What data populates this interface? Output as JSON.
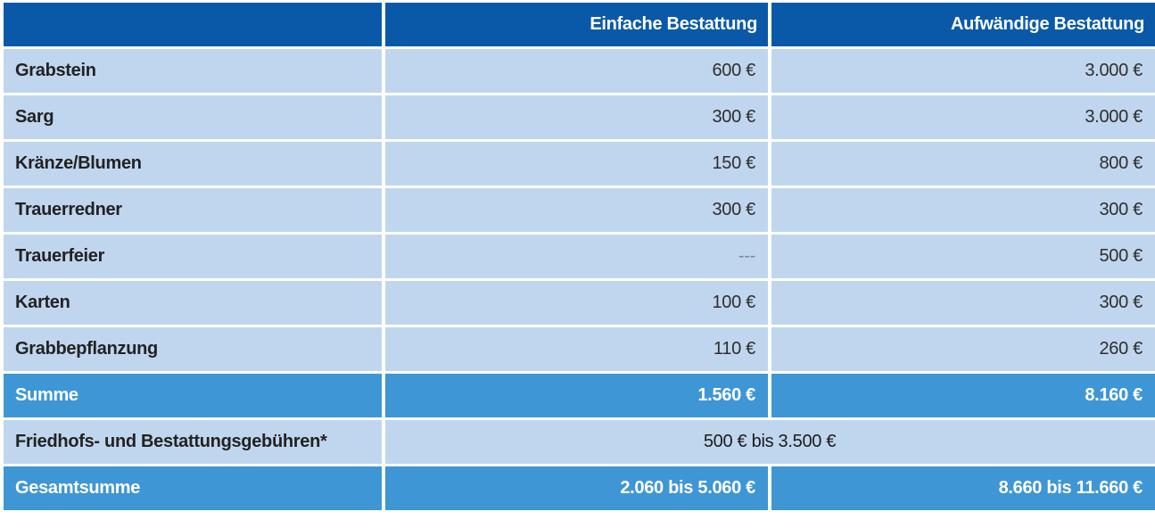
{
  "header": {
    "col_label": "",
    "col_simple": "Einfache Bestattung",
    "col_elaborate": "Aufwändige Bestattung"
  },
  "rows": [
    {
      "label": "Grabstein",
      "simple": "600 €",
      "elaborate": "3.000 €"
    },
    {
      "label": "Sarg",
      "simple": "300 €",
      "elaborate": "3.000 €"
    },
    {
      "label": "Kränze/Blumen",
      "simple": "150 €",
      "elaborate": "800 €"
    },
    {
      "label": "Trauerredner",
      "simple": "300 €",
      "elaborate": "300 €"
    },
    {
      "label": "Trauerfeier",
      "simple": "---",
      "elaborate": "500 €"
    },
    {
      "label": "Karten",
      "simple": "100 €",
      "elaborate": "300 €"
    },
    {
      "label": "Grabbepflanzung",
      "simple": "110 €",
      "elaborate": "260 €"
    }
  ],
  "sum": {
    "label": "Summe",
    "simple": "1.560 €",
    "elaborate": "8.160 €"
  },
  "fees": {
    "label": "Friedhofs- und Bestattungsgebühren*",
    "value": "500 € bis 3.500 €"
  },
  "grand_total": {
    "label": "Gesamtsumme",
    "simple": "2.060 bis 5.060 €",
    "elaborate": "8.660 bis 11.660 €"
  },
  "colors": {
    "header_bg": "#0a59a8",
    "row_bg": "#c0d6ee",
    "total_bg": "#3f96d4"
  }
}
